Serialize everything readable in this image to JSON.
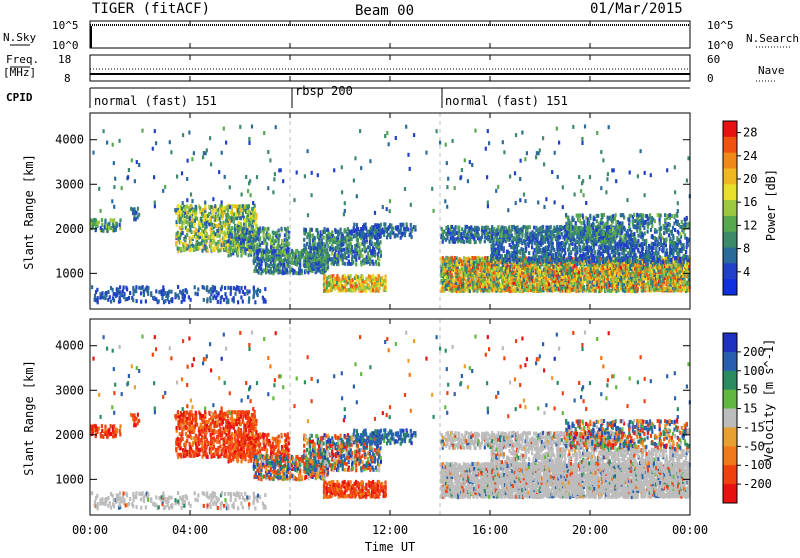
{
  "header": {
    "station": "TIGER (fitACF)",
    "beam": "Beam 00",
    "date": "01/Mar/2015"
  },
  "top_panels": {
    "nsky": {
      "label": "N.Sky",
      "ticks": [
        "10^5",
        "10^0"
      ],
      "right_ticks": [
        "10^5",
        "10^0"
      ],
      "right_label": "N.Search"
    },
    "freq": {
      "label_line1": "Freq.",
      "label_line2": "[MHz]",
      "ticks": [
        "18",
        "8"
      ],
      "right_ticks": [
        "60",
        "0"
      ],
      "right_label": "Nave"
    },
    "cpid": {
      "label": "CPID",
      "segments": [
        {
          "label": "normal (fast) 151",
          "start_hour": 0
        },
        {
          "label": "rbsp 200",
          "start_hour": 8
        },
        {
          "label": "normal (fast) 151",
          "start_hour": 14
        }
      ]
    }
  },
  "chart_data": [
    {
      "type": "heatmap",
      "name": "power",
      "ylabel": "Slant Range [km]",
      "ylim": [
        200,
        4600
      ],
      "yticks": [
        "1000",
        "2000",
        "3000",
        "4000"
      ],
      "ytick_values": [
        1000,
        2000,
        3000,
        4000
      ],
      "colorbar": {
        "label": "Power [dB]",
        "ticks": [
          "28",
          "24",
          "20",
          "16",
          "12",
          "8",
          "4"
        ],
        "range": [
          0,
          30
        ],
        "colors": [
          "#1030e0",
          "#2040c8",
          "#2a6a9a",
          "#3c8a6a",
          "#58a850",
          "#9cc840",
          "#e8e028",
          "#f0b820",
          "#f08818",
          "#f05010",
          "#e81010"
        ]
      }
    },
    {
      "type": "heatmap",
      "name": "velocity",
      "ylabel": "Slant Range [km]",
      "ylim": [
        200,
        4600
      ],
      "yticks": [
        "1000",
        "2000",
        "3000",
        "4000"
      ],
      "ytick_values": [
        1000,
        2000,
        3000,
        4000
      ],
      "colorbar": {
        "label": "Velocity [m s^-1]",
        "ticks": [
          "200",
          "100",
          "50",
          "15",
          "-15",
          "-50",
          "-100",
          "-200"
        ],
        "colors": [
          "#2030c0",
          "#2860b0",
          "#2a8a60",
          "#60b840",
          "#bcbcbc",
          "#e8a030",
          "#f07818",
          "#f04010",
          "#e81010"
        ]
      }
    }
  ],
  "xaxis": {
    "label": "Time UT",
    "ticks": [
      "00:00",
      "04:00",
      "08:00",
      "12:00",
      "16:00",
      "20:00",
      "00:00"
    ],
    "xlim": [
      0,
      24
    ]
  }
}
